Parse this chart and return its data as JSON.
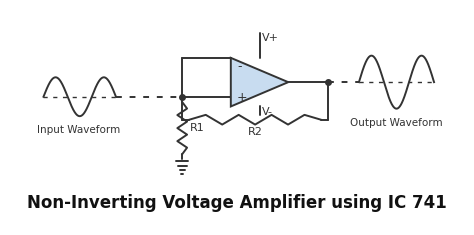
{
  "title": "Non-Inverting Voltage Amplifier using IC 741",
  "title_fontsize": 12,
  "bg_color": "#ffffff",
  "line_color": "#333333",
  "op_amp_fill": "#c8dcf0",
  "input_label": "Input Waveform",
  "output_label": "Output Waveform",
  "r1_label": "R1",
  "r2_label": "R2",
  "vplus_label": "V+",
  "vminus_label": "V-",
  "minus_label": "-",
  "plus_label": "+"
}
